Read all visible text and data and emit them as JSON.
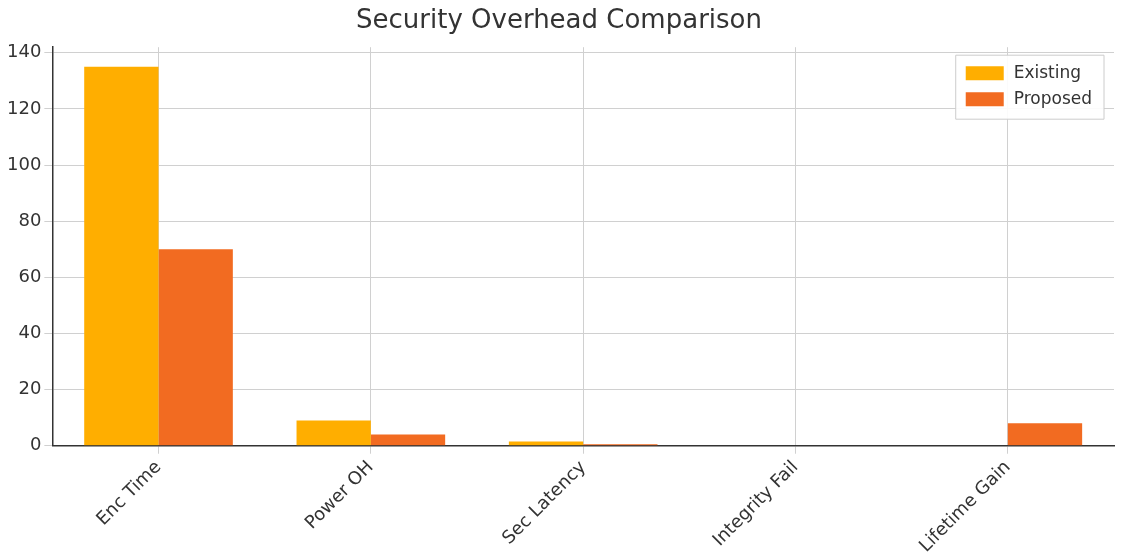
{
  "chart_data": {
    "type": "bar",
    "title": "Security Overhead Comparison",
    "categories": [
      "Enc Time",
      "Power OH",
      "Sec Latency",
      "Integrity Fail",
      "Lifetime Gain"
    ],
    "series": [
      {
        "name": "Existing",
        "color": "#ffae00",
        "values": [
          135,
          9,
          1.5,
          0,
          0
        ]
      },
      {
        "name": "Proposed",
        "color": "#f26b21",
        "values": [
          70,
          4,
          0.5,
          0,
          8
        ]
      }
    ],
    "ylim": [
      0,
      142
    ],
    "yticks": [
      0,
      20,
      40,
      60,
      80,
      100,
      120,
      140
    ],
    "grid": true,
    "legend": "top right"
  }
}
